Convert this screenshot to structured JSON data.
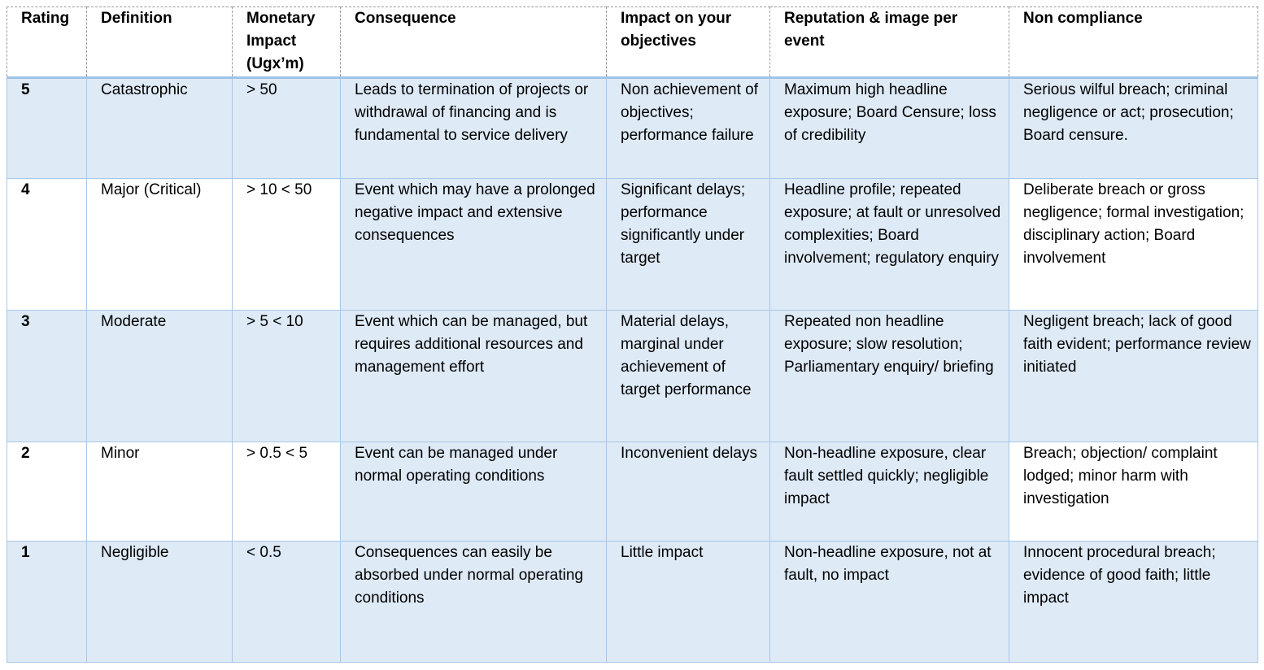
{
  "table": {
    "header": [
      "Rating",
      "Definition",
      "Monetary Impact (Ugx’m)",
      "Consequence",
      "Impact on your objectives",
      "Reputation & image per event",
      "Non compliance"
    ],
    "rows": [
      [
        "5",
        "Catastrophic",
        "> 50",
        "Leads to termination of projects or withdrawal of financing and is fundamental to service delivery",
        "Non achievement of objectives; performance failure",
        "Maximum high headline exposure; Board Censure; loss of credibility",
        "Serious wilful breach; criminal negligence or act; prosecution; Board censure."
      ],
      [
        "4",
        "Major (Critical)",
        "> 10 < 50",
        "Event which may have a prolonged negative impact and extensive consequences",
        "Significant delays; performance significantly under target",
        "Headline profile; repeated exposure; at fault or unresolved complexities; Board involvement; regulatory enquiry",
        "Deliberate breach or gross negligence; formal investigation; disciplinary action; Board involvement"
      ],
      [
        "3",
        "Moderate",
        "> 5 < 10",
        "Event which can be managed, but requires additional resources and management effort",
        "Material delays, marginal under achievement of target performance",
        "Repeated non headline exposure; slow resolution; Parliamentary enquiry/ briefing",
        "Negligent breach; lack of good faith evident; performance review initiated"
      ],
      [
        "2",
        "Minor",
        "> 0.5 < 5",
        "Event can be managed under normal operating conditions",
        "Inconvenient delays",
        "Non-headline exposure, clear fault settled quickly; negligible impact",
        "Breach; objection/ complaint lodged; minor harm with investigation"
      ],
      [
        "1",
        "Negligible",
        "< 0.5",
        "Consequences can easily be absorbed under normal operating conditions",
        "Little impact",
        "Non-headline exposure, not at fault, no impact",
        "Innocent procedural breach; evidence of good faith; little impact"
      ]
    ]
  }
}
